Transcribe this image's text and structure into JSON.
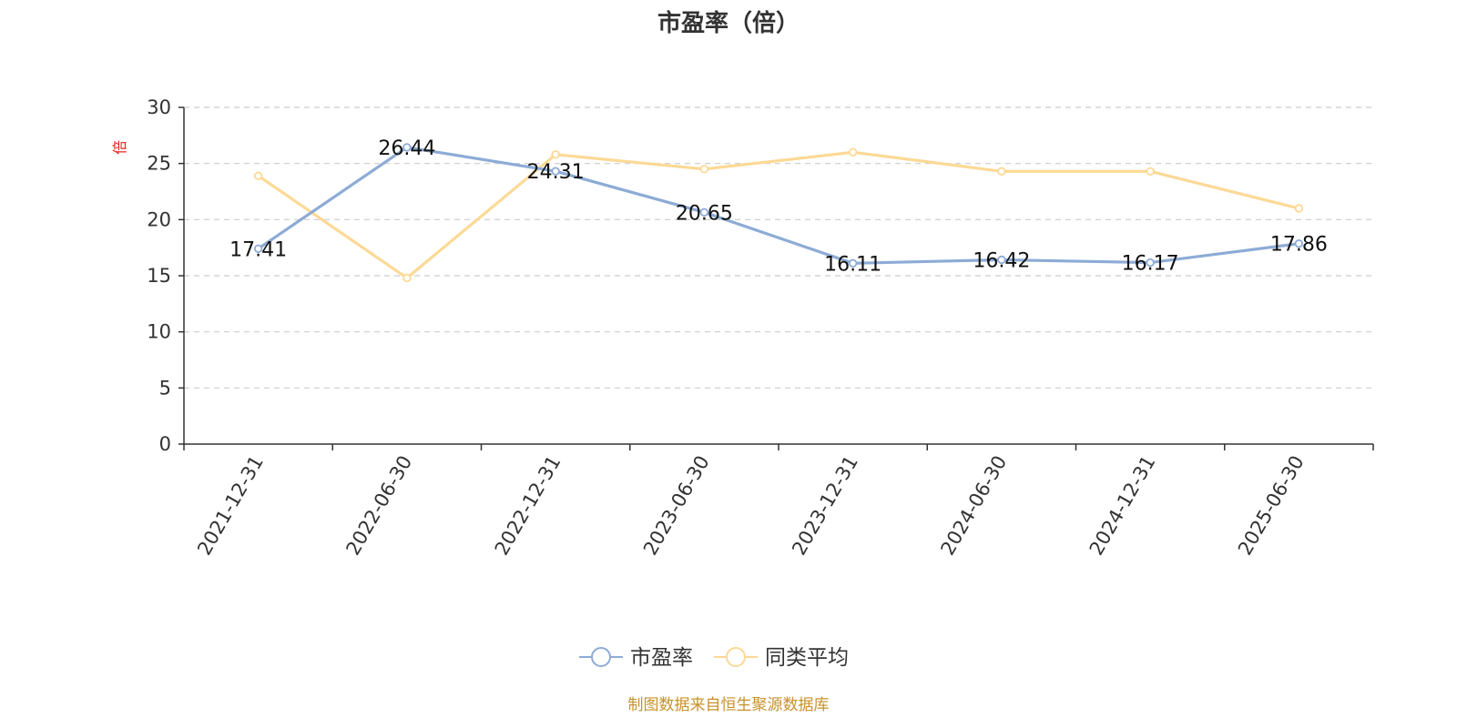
{
  "chart_data": {
    "type": "line",
    "title": "市盈率（倍）",
    "y_unit": "倍",
    "categories": [
      "2021-12-31",
      "2022-06-30",
      "2022-12-31",
      "2023-06-30",
      "2023-12-31",
      "2024-06-30",
      "2024-12-31",
      "2025-06-30"
    ],
    "ylim": [
      0,
      30
    ],
    "yticks": [
      0,
      5,
      10,
      15,
      20,
      25,
      30
    ],
    "grid": true,
    "legend_position": "bottom-center",
    "series": [
      {
        "name": "市盈率",
        "color": "#8dabd6",
        "values": [
          17.41,
          26.44,
          24.31,
          20.65,
          16.11,
          16.42,
          16.17,
          17.86
        ],
        "labels": [
          "17.41",
          "26.44",
          "24.31",
          "20.65",
          "16.11",
          "16.42",
          "16.17",
          "17.86"
        ]
      },
      {
        "name": "同类平均",
        "color": "#fcd995",
        "values": [
          23.9,
          14.8,
          25.8,
          24.5,
          26.0,
          24.3,
          24.3,
          21.0
        ]
      }
    ],
    "source_note": "制图数据来自恒生聚源数据库"
  }
}
